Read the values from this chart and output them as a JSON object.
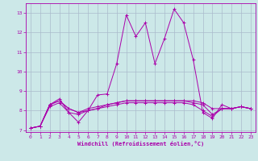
{
  "xlabel": "Windchill (Refroidissement éolien,°C)",
  "xlim": [
    -0.5,
    23.5
  ],
  "ylim": [
    6.9,
    13.5
  ],
  "yticks": [
    7,
    8,
    9,
    10,
    11,
    12,
    13
  ],
  "xticks": [
    0,
    1,
    2,
    3,
    4,
    5,
    6,
    7,
    8,
    9,
    10,
    11,
    12,
    13,
    14,
    15,
    16,
    17,
    18,
    19,
    20,
    21,
    22,
    23
  ],
  "bg_color": "#cce8e8",
  "grid_color": "#aabbcc",
  "line_color": "#aa00aa",
  "lines": [
    [
      7.1,
      7.2,
      8.3,
      8.6,
      7.9,
      7.4,
      8.0,
      8.8,
      8.85,
      10.4,
      12.9,
      11.8,
      12.5,
      10.4,
      11.7,
      13.2,
      12.5,
      10.6,
      7.9,
      7.6,
      8.3,
      8.1,
      8.2,
      8.1
    ],
    [
      7.1,
      7.2,
      8.3,
      8.5,
      8.1,
      7.9,
      8.1,
      8.2,
      8.3,
      8.4,
      8.5,
      8.5,
      8.5,
      8.5,
      8.5,
      8.5,
      8.5,
      8.5,
      8.4,
      8.1,
      8.1,
      8.1,
      8.2,
      8.1
    ],
    [
      7.1,
      7.2,
      8.3,
      8.5,
      8.1,
      7.9,
      8.0,
      8.1,
      8.2,
      8.3,
      8.4,
      8.4,
      8.4,
      8.4,
      8.4,
      8.4,
      8.4,
      8.3,
      8.0,
      7.7,
      8.1,
      8.1,
      8.2,
      8.1
    ],
    [
      7.1,
      7.2,
      8.2,
      8.4,
      7.9,
      7.8,
      8.0,
      8.1,
      8.3,
      8.4,
      8.5,
      8.5,
      8.5,
      8.5,
      8.5,
      8.5,
      8.5,
      8.4,
      8.3,
      7.8,
      8.1,
      8.1,
      8.2,
      8.1
    ]
  ]
}
